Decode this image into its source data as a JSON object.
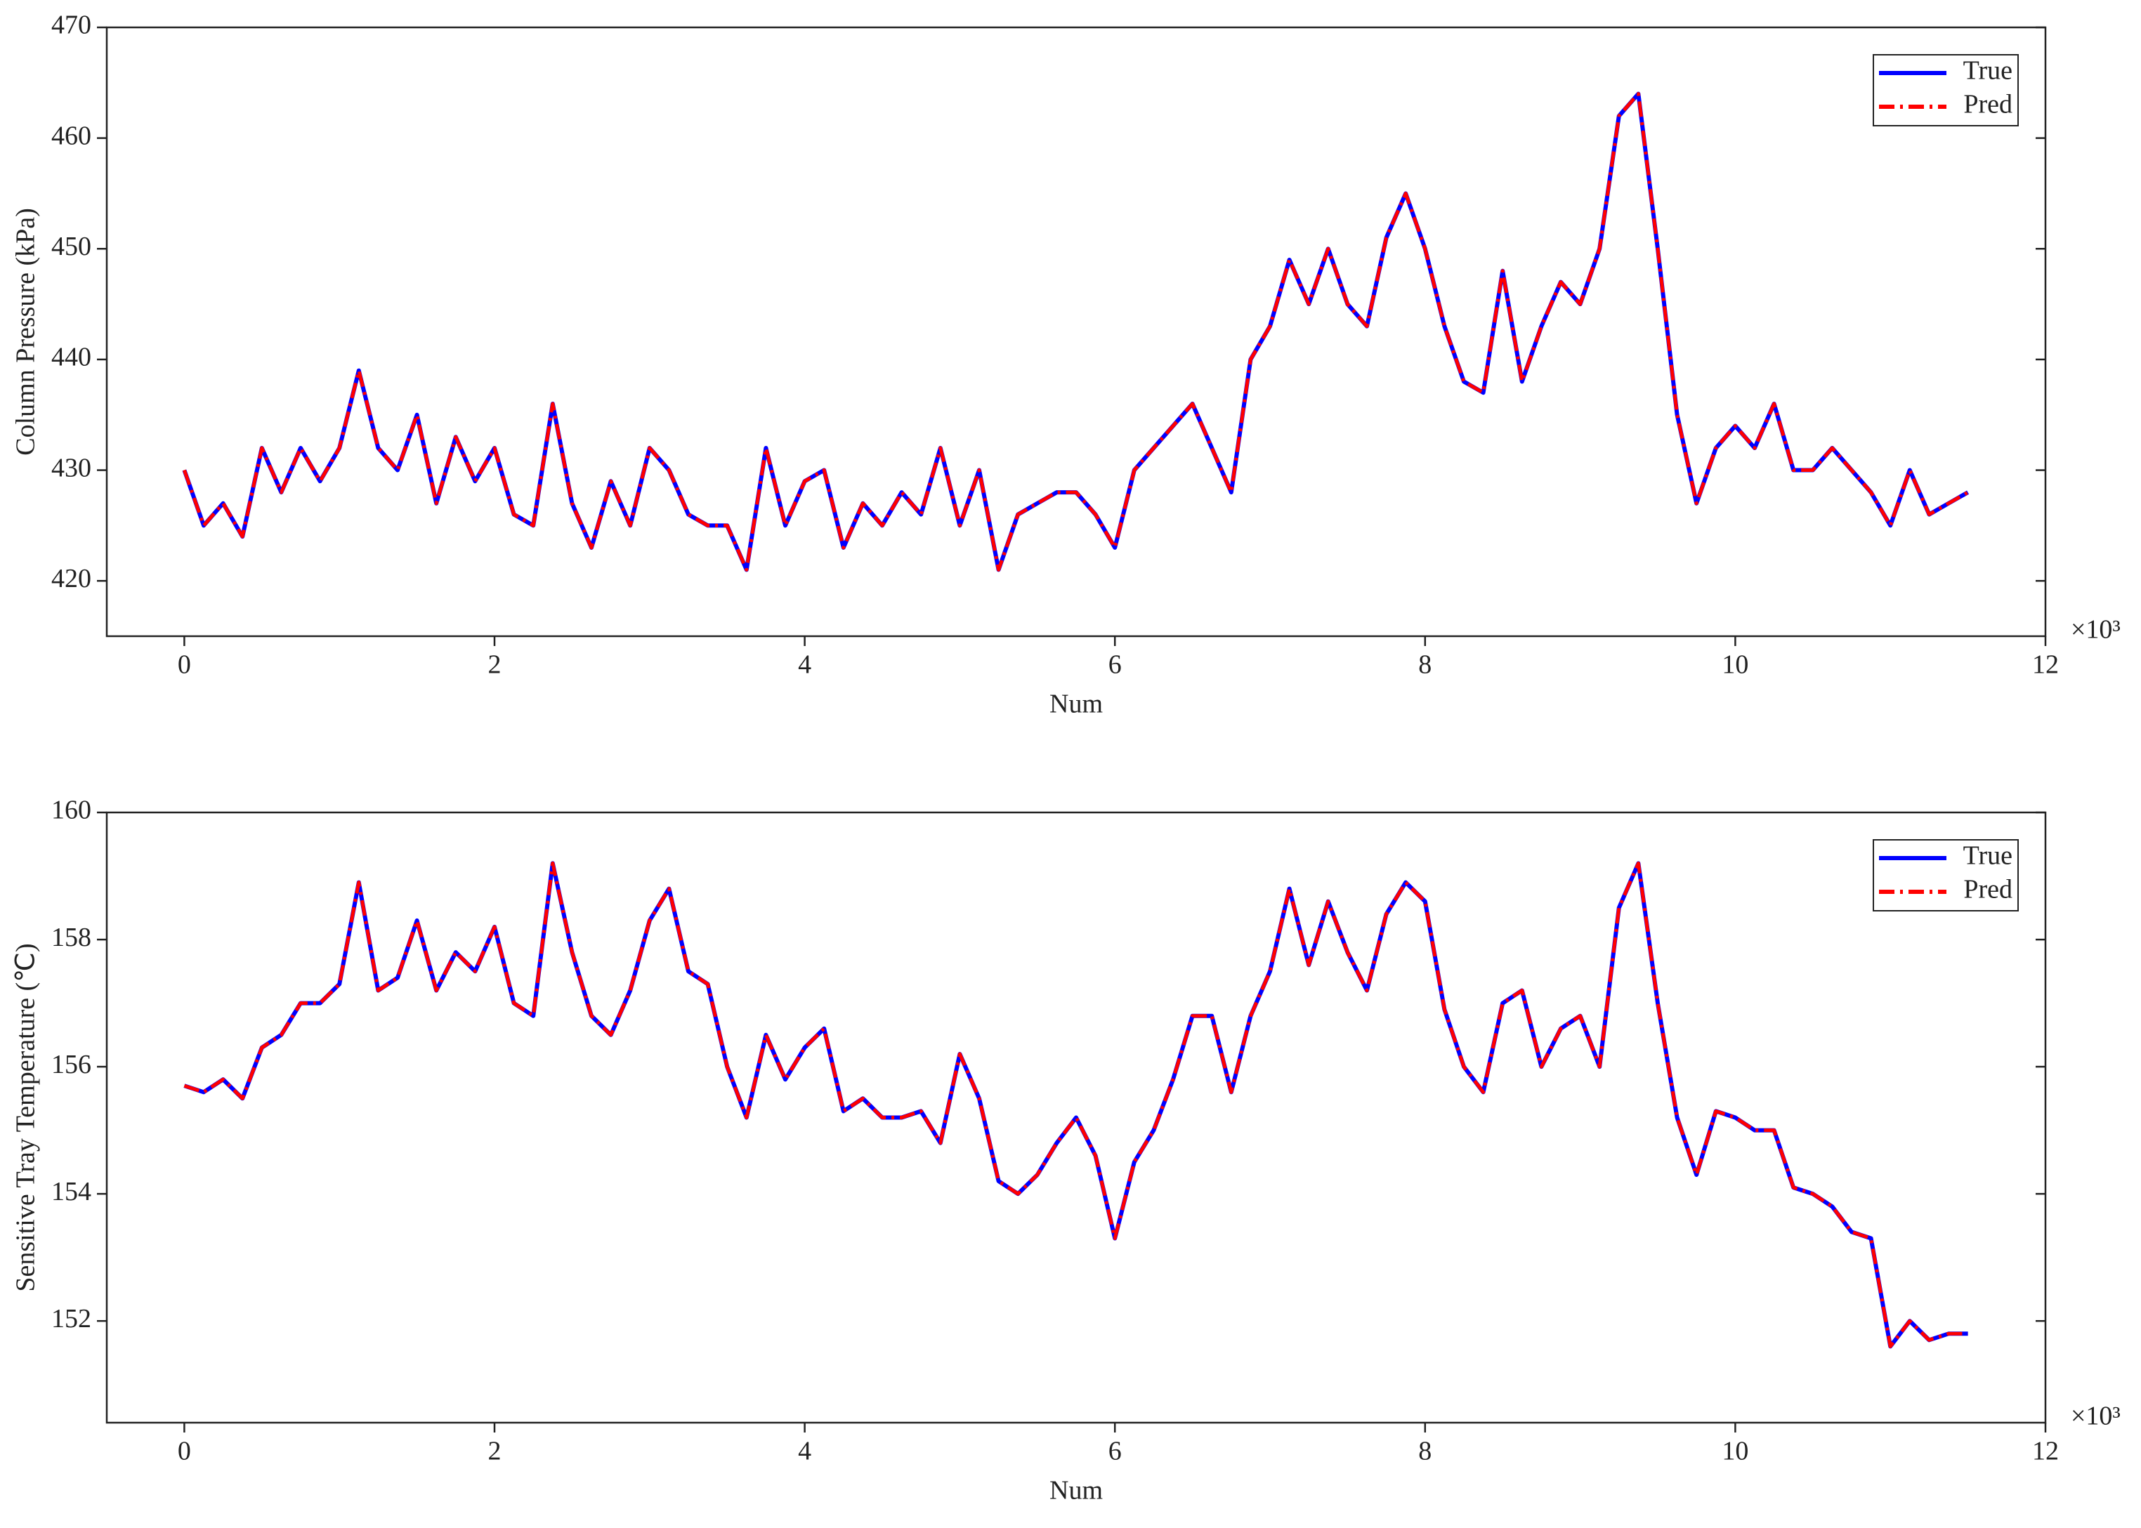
{
  "chart_data": [
    {
      "type": "line",
      "y_label": "Column Pressure (kPa)",
      "x_label": "Num",
      "x_multiplier": "×10³",
      "legend": "upper right",
      "x": [
        0,
        0.125,
        0.25,
        0.375,
        0.5,
        0.625,
        0.75,
        0.875,
        1,
        1.125,
        1.25,
        1.375,
        1.5,
        1.625,
        1.75,
        1.875,
        2,
        2.125,
        2.25,
        2.375,
        2.5,
        2.625,
        2.75,
        2.875,
        3,
        3.125,
        3.25,
        3.375,
        3.5,
        3.625,
        3.75,
        3.875,
        4,
        4.125,
        4.25,
        4.375,
        4.5,
        4.625,
        4.75,
        4.875,
        5,
        5.125,
        5.25,
        5.375,
        5.5,
        5.625,
        5.75,
        5.875,
        6,
        6.125,
        6.25,
        6.375,
        6.5,
        6.625,
        6.75,
        6.875,
        7,
        7.125,
        7.25,
        7.375,
        7.5,
        7.625,
        7.75,
        7.875,
        8,
        8.125,
        8.25,
        8.375,
        8.5,
        8.625,
        8.75,
        8.875,
        9,
        9.125,
        9.25,
        9.375,
        9.5,
        9.625,
        9.75,
        9.875,
        10,
        10.125,
        10.25,
        10.375,
        10.5,
        10.625,
        10.75,
        10.875,
        11,
        11.125,
        11.25,
        11.375,
        11.5
      ],
      "series": [
        {
          "name": "True",
          "color": "#0000ff",
          "values": [
            430,
            425,
            427,
            424,
            432,
            428,
            432,
            429,
            432,
            439,
            432,
            430,
            435,
            427,
            433,
            429,
            432,
            426,
            425,
            436,
            427,
            423,
            429,
            425,
            432,
            430,
            426,
            425,
            425,
            421,
            432,
            425,
            429,
            430,
            423,
            427,
            425,
            428,
            426,
            432,
            425,
            430,
            421,
            426,
            427,
            428,
            428,
            426,
            423,
            430,
            432,
            434,
            436,
            432,
            428,
            440,
            443,
            449,
            445,
            450,
            445,
            443,
            451,
            455,
            450,
            443,
            438,
            437,
            448,
            438,
            443,
            447,
            445,
            450,
            462,
            464,
            450,
            435,
            427,
            432,
            434,
            432,
            436,
            430,
            430,
            432,
            430,
            428,
            425,
            430,
            426,
            427,
            428
          ]
        },
        {
          "name": "Pred",
          "color": "#ff0000",
          "values": [
            430,
            425,
            427,
            424,
            432,
            428,
            432,
            429,
            432,
            439,
            432,
            430,
            435,
            427,
            433,
            429,
            432,
            426,
            425,
            436,
            427,
            423,
            429,
            425,
            432,
            430,
            426,
            425,
            425,
            421,
            432,
            425,
            429,
            430,
            423,
            427,
            425,
            428,
            426,
            432,
            425,
            430,
            421,
            426,
            427,
            428,
            428,
            426,
            423,
            430,
            432,
            434,
            436,
            432,
            428,
            440,
            443,
            449,
            445,
            450,
            445,
            443,
            451,
            455,
            450,
            443,
            438,
            437,
            448,
            438,
            443,
            447,
            445,
            450,
            462,
            464,
            450,
            435,
            427,
            432,
            434,
            432,
            436,
            430,
            430,
            432,
            430,
            428,
            425,
            430,
            426,
            427,
            428
          ]
        }
      ],
      "xlim": [
        -0.5,
        12
      ],
      "xticks": [
        0,
        2,
        4,
        6,
        8,
        10,
        12
      ],
      "ylim": [
        415,
        470
      ],
      "yticks": [
        420,
        430,
        440,
        450,
        460,
        470
      ]
    },
    {
      "type": "line",
      "y_label": "Sensitive Tray Temperature (℃)",
      "x_label": "Num",
      "x_multiplier": "×10³",
      "legend": "upper right",
      "x": [
        0,
        0.125,
        0.25,
        0.375,
        0.5,
        0.625,
        0.75,
        0.875,
        1,
        1.125,
        1.25,
        1.375,
        1.5,
        1.625,
        1.75,
        1.875,
        2,
        2.125,
        2.25,
        2.375,
        2.5,
        2.625,
        2.75,
        2.875,
        3,
        3.125,
        3.25,
        3.375,
        3.5,
        3.625,
        3.75,
        3.875,
        4,
        4.125,
        4.25,
        4.375,
        4.5,
        4.625,
        4.75,
        4.875,
        5,
        5.125,
        5.25,
        5.375,
        5.5,
        5.625,
        5.75,
        5.875,
        6,
        6.125,
        6.25,
        6.375,
        6.5,
        6.625,
        6.75,
        6.875,
        7,
        7.125,
        7.25,
        7.375,
        7.5,
        7.625,
        7.75,
        7.875,
        8,
        8.125,
        8.25,
        8.375,
        8.5,
        8.625,
        8.75,
        8.875,
        9,
        9.125,
        9.25,
        9.375,
        9.5,
        9.625,
        9.75,
        9.875,
        10,
        10.125,
        10.25,
        10.375,
        10.5,
        10.625,
        10.75,
        10.875,
        11,
        11.125,
        11.25,
        11.375,
        11.5
      ],
      "series": [
        {
          "name": "True",
          "color": "#0000ff",
          "values": [
            155.7,
            155.6,
            155.8,
            155.5,
            156.3,
            156.5,
            157.0,
            157.0,
            157.3,
            158.9,
            157.2,
            157.4,
            158.3,
            157.2,
            157.8,
            157.5,
            158.2,
            157.0,
            156.8,
            159.2,
            157.8,
            156.8,
            156.5,
            157.2,
            158.3,
            158.8,
            157.5,
            157.3,
            156.0,
            155.2,
            156.5,
            155.8,
            156.3,
            156.6,
            155.3,
            155.5,
            155.2,
            155.2,
            155.3,
            154.8,
            156.2,
            155.5,
            154.2,
            154.0,
            154.3,
            154.8,
            155.2,
            154.6,
            153.3,
            154.5,
            155.0,
            155.8,
            156.8,
            156.8,
            155.6,
            156.8,
            157.5,
            158.8,
            157.6,
            158.6,
            157.8,
            157.2,
            158.4,
            158.9,
            158.6,
            156.9,
            156.0,
            155.6,
            157.0,
            157.2,
            156.0,
            156.6,
            156.8,
            156.0,
            158.5,
            159.2,
            157.0,
            155.2,
            154.3,
            155.3,
            155.2,
            155.0,
            155.0,
            154.1,
            154.0,
            153.8,
            153.4,
            153.3,
            151.6,
            152.0,
            151.7,
            151.8,
            151.8
          ]
        },
        {
          "name": "Pred",
          "color": "#ff0000",
          "values": [
            155.7,
            155.6,
            155.8,
            155.5,
            156.3,
            156.5,
            157.0,
            157.0,
            157.3,
            158.9,
            157.2,
            157.4,
            158.3,
            157.2,
            157.8,
            157.5,
            158.2,
            157.0,
            156.8,
            159.2,
            157.8,
            156.8,
            156.5,
            157.2,
            158.3,
            158.8,
            157.5,
            157.3,
            156.0,
            155.2,
            156.5,
            155.8,
            156.3,
            156.6,
            155.3,
            155.5,
            155.2,
            155.2,
            155.3,
            154.8,
            156.2,
            155.5,
            154.2,
            154.0,
            154.3,
            154.8,
            155.2,
            154.6,
            153.3,
            154.5,
            155.0,
            155.8,
            156.8,
            156.8,
            155.6,
            156.8,
            157.5,
            158.8,
            157.6,
            158.6,
            157.8,
            157.2,
            158.4,
            158.9,
            158.6,
            156.9,
            156.0,
            155.6,
            157.0,
            157.2,
            156.0,
            156.6,
            156.8,
            156.0,
            158.5,
            159.2,
            157.0,
            155.2,
            154.3,
            155.3,
            155.2,
            155.0,
            155.0,
            154.1,
            154.0,
            153.8,
            153.4,
            153.3,
            151.6,
            152.0,
            151.7,
            151.8,
            151.8
          ]
        }
      ],
      "xlim": [
        -0.5,
        12
      ],
      "xticks": [
        0,
        2,
        4,
        6,
        8,
        10,
        12
      ],
      "ylim": [
        150.4,
        160
      ],
      "yticks": [
        152,
        154,
        156,
        158,
        160
      ]
    }
  ]
}
